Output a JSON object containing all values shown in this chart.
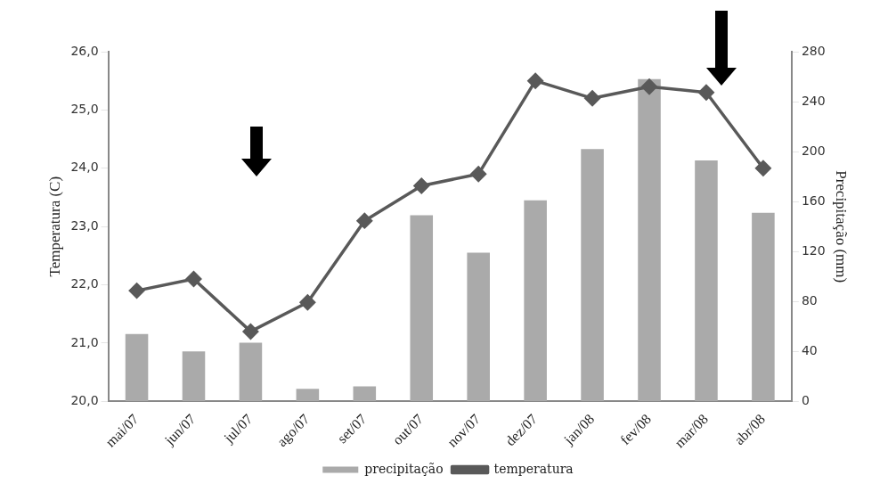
{
  "chart_data": {
    "type": "bar",
    "categories": [
      "mai/07",
      "jun/07",
      "jul/07",
      "ago/07",
      "set/07",
      "out/07",
      "nov/07",
      "dez/07",
      "jan/08",
      "fev/08",
      "mar/08",
      "abr/08"
    ],
    "series": [
      {
        "name": "precipitação",
        "axis": "y2",
        "color": "#aaaaaa",
        "values": [
          54,
          40,
          47,
          10,
          12,
          149,
          119,
          161,
          202,
          258,
          193,
          151
        ]
      },
      {
        "name": "temperatura",
        "type": "line",
        "axis": "y",
        "color": "#595959",
        "marker": "diamond",
        "line_style": "solid",
        "values": [
          21.9,
          22.1,
          21.2,
          21.7,
          23.1,
          23.7,
          23.9,
          25.5,
          25.2,
          25.4,
          25.3,
          24.0
        ]
      }
    ],
    "ylabel": "Temperatura (C)",
    "y2label": "Precipitação (mm)",
    "ylim": [
      20,
      26
    ],
    "yticks": [
      {
        "value": 20,
        "label": "20,0"
      },
      {
        "value": 21,
        "label": "21,0"
      },
      {
        "value": 22,
        "label": "22,0"
      },
      {
        "value": 23,
        "label": "23,0"
      },
      {
        "value": 24,
        "label": "24,0"
      },
      {
        "value": 25,
        "label": "25,0"
      },
      {
        "value": 26,
        "label": "26,0"
      }
    ],
    "y2lim": [
      0,
      280
    ],
    "y2ticks": [
      0,
      40,
      80,
      120,
      160,
      200,
      240,
      280
    ],
    "grid": false,
    "legend": "bottom"
  }
}
